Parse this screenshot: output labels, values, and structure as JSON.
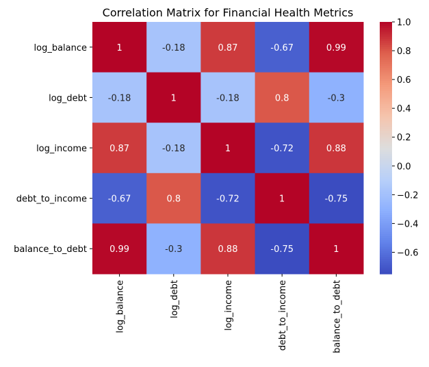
{
  "chart_data": {
    "type": "heatmap",
    "title": "Correlation Matrix for Financial Health Metrics",
    "xlabel": "",
    "ylabel": "",
    "row_labels": [
      "log_balance",
      "log_debt",
      "log_income",
      "debt_to_income",
      "balance_to_debt"
    ],
    "col_labels": [
      "log_balance",
      "log_debt",
      "log_income",
      "debt_to_income",
      "balance_to_debt"
    ],
    "values": [
      [
        1,
        -0.18,
        0.87,
        -0.67,
        0.99
      ],
      [
        -0.18,
        1,
        -0.18,
        0.8,
        -0.3
      ],
      [
        0.87,
        -0.18,
        1,
        -0.72,
        0.88
      ],
      [
        -0.67,
        0.8,
        -0.72,
        1,
        -0.75
      ],
      [
        0.99,
        -0.3,
        0.88,
        -0.75,
        1
      ]
    ],
    "value_labels": [
      [
        "1",
        "-0.18",
        "0.87",
        "-0.67",
        "0.99"
      ],
      [
        "-0.18",
        "1",
        "-0.18",
        "0.8",
        "-0.3"
      ],
      [
        "0.87",
        "-0.18",
        "1",
        "-0.72",
        "0.88"
      ],
      [
        "-0.67",
        "0.8",
        "-0.72",
        "1",
        "-0.75"
      ],
      [
        "0.99",
        "-0.3",
        "0.88",
        "-0.75",
        "1"
      ]
    ],
    "colormap": "coolwarm",
    "colorbar": {
      "vmin": -0.75,
      "vmax": 1.0,
      "ticks": [
        1.0,
        0.8,
        0.6,
        0.4,
        0.2,
        0.0,
        -0.2,
        -0.4,
        -0.6
      ],
      "tick_labels": [
        "1.0",
        "0.8",
        "0.6",
        "0.4",
        "0.2",
        "0.0",
        "−0.2",
        "−0.4",
        "−0.6"
      ]
    },
    "grid": false,
    "legend": "colorbar-right"
  }
}
